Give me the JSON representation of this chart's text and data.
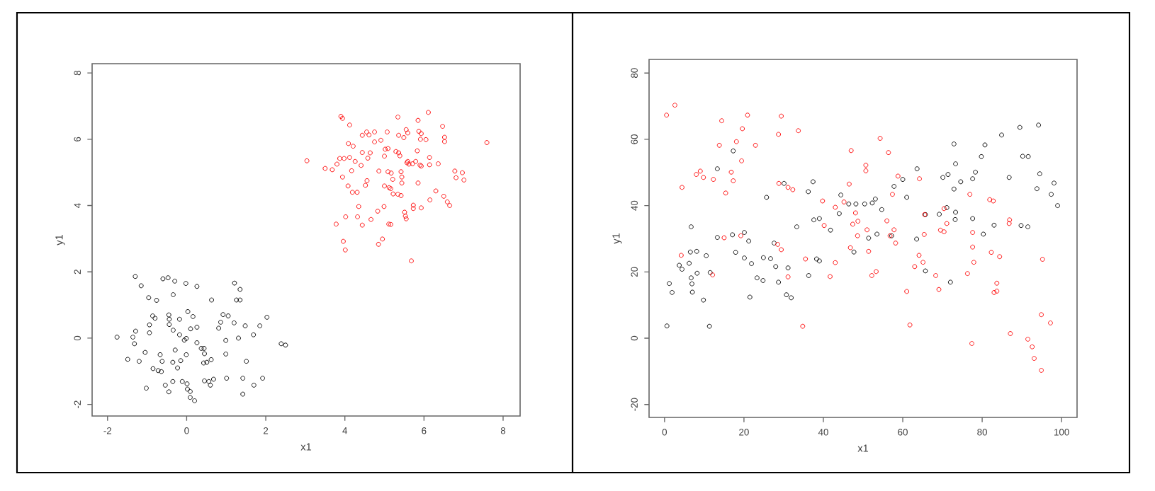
{
  "chart_data": [
    {
      "type": "scatter",
      "xlabel": "x1",
      "ylabel": "y1",
      "marker": "circle",
      "xlim": [
        -2.39,
        8.43
      ],
      "ylim": [
        -2.35,
        8.28
      ],
      "xticks": [
        -2,
        0,
        2,
        4,
        6,
        8
      ],
      "yticks": [
        -2,
        0,
        2,
        4,
        6,
        8
      ],
      "series": [
        {
          "color": "#000000",
          "x": [
            -1.3,
            -1.15,
            -0.6,
            -0.47,
            -0.3,
            -0.02,
            0.26,
            1.21,
            1.35,
            -0.96,
            -0.76,
            -0.34,
            0.63,
            1.26,
            1.35,
            -0.86,
            -0.8,
            -0.94,
            -0.45,
            -0.44,
            -0.18,
            0.03,
            0.16,
            0.92,
            1.05,
            0.86,
            1.2,
            2.03,
            -1.29,
            -1.36,
            -1.76,
            -1.32,
            -0.94,
            -0.44,
            -0.34,
            -0.18,
            -0.06,
            -0.01,
            0.1,
            0.26,
            0.81,
            0.99,
            1.31,
            1.48,
            1.69,
            1.85,
            2.39,
            2.5,
            -1.49,
            -1.2,
            -1.05,
            -0.67,
            -0.62,
            -0.29,
            -0.35,
            -0.23,
            -0.15,
            -0.01,
            0.26,
            0.37,
            0.44,
            0.45,
            0.43,
            0.51,
            0.62,
            0.99,
            1.51,
            -0.85,
            -0.72,
            -0.64,
            -1.02,
            -0.54,
            -0.35,
            -0.45,
            -0.11,
            0.01,
            0.02,
            0.09,
            0.09,
            0.2,
            0.45,
            0.56,
            0.6,
            0.68,
            1.01,
            1.42,
            1.42,
            1.7,
            1.92
          ],
          "values": [
            1.86,
            1.58,
            1.79,
            1.82,
            1.72,
            1.65,
            1.56,
            1.66,
            1.47,
            1.22,
            1.14,
            1.31,
            1.15,
            1.15,
            1.15,
            0.67,
            0.6,
            0.4,
            0.7,
            0.57,
            0.57,
            0.8,
            0.65,
            0.71,
            0.67,
            0.48,
            0.46,
            0.63,
            0.21,
            0.03,
            0.03,
            -0.17,
            0.16,
            0.41,
            0.24,
            0.1,
            -0.06,
            -0.01,
            0.28,
            0.33,
            0.3,
            -0.07,
            0.0,
            0.37,
            0.1,
            0.37,
            -0.17,
            -0.21,
            -0.64,
            -0.7,
            -0.43,
            -0.5,
            -0.7,
            -0.36,
            -0.73,
            -0.9,
            -0.68,
            -0.5,
            -0.14,
            -0.31,
            -0.31,
            -0.47,
            -0.75,
            -0.73,
            -0.65,
            -0.48,
            -0.7,
            -0.92,
            -0.98,
            -1.01,
            -1.51,
            -1.42,
            -1.31,
            -1.62,
            -1.31,
            -1.38,
            -1.54,
            -1.61,
            -1.79,
            -1.89,
            -1.29,
            -1.31,
            -1.42,
            -1.24,
            -1.21,
            -1.21,
            -1.69,
            -1.42,
            -1.21
          ]
        },
        {
          "color": "#ff0000",
          "x": [
            3.9,
            3.94,
            4.12,
            4.61,
            4.44,
            4.55,
            4.75,
            5.34,
            5.85,
            6.11,
            6.47,
            5.07,
            5.36,
            5.55,
            5.59,
            5.87,
            5.93,
            6.52,
            6.52,
            6.05,
            4.09,
            4.21,
            4.75,
            4.91,
            5.91,
            5.09,
            5.49,
            5.83,
            3.04,
            3.5,
            3.68,
            3.8,
            3.87,
            3.98,
            4.17,
            4.12,
            4.26,
            4.41,
            4.58,
            4.44,
            4.64,
            5.0,
            5.02,
            5.29,
            5.36,
            5.39,
            5.59,
            5.79,
            5.71,
            6.14,
            5.93,
            6.14,
            6.36,
            5.17,
            5.42,
            5.57,
            5.62,
            5.9,
            4.86,
            3.94,
            4.08,
            4.19,
            4.31,
            4.56,
            4.52,
            5.09,
            5.21,
            5.44,
            5.44,
            5.0,
            5.12,
            5.16,
            5.22,
            5.34,
            5.42,
            5.85,
            6.3,
            6.5,
            6.59,
            6.65,
            6.78,
            6.81,
            6.97,
            7.01,
            5.73,
            5.73,
            5.93,
            6.15,
            4.35,
            4.83,
            4.99,
            4.02,
            4.32,
            4.44,
            3.78,
            4.66,
            5.11,
            5.16,
            5.51,
            5.53,
            5.55,
            3.96,
            4.01,
            4.85,
            4.95,
            5.68,
            7.59
          ],
          "values": [
            6.69,
            6.63,
            6.43,
            6.13,
            6.12,
            6.22,
            6.22,
            6.67,
            6.57,
            6.81,
            6.39,
            6.22,
            6.12,
            6.29,
            6.19,
            6.24,
            6.17,
            6.06,
            5.93,
            5.99,
            5.87,
            5.79,
            5.92,
            5.97,
            6.0,
            5.72,
            6.05,
            5.65,
            5.35,
            5.12,
            5.08,
            5.25,
            5.42,
            5.42,
            5.05,
            5.45,
            5.33,
            5.21,
            5.43,
            5.6,
            5.59,
            5.49,
            5.7,
            5.63,
            5.59,
            5.5,
            5.33,
            5.33,
            5.26,
            5.45,
            5.19,
            5.23,
            5.26,
            4.98,
            5.02,
            5.29,
            5.25,
            5.22,
            5.04,
            4.86,
            4.59,
            4.4,
            4.4,
            4.75,
            4.61,
            5.02,
            4.79,
            4.86,
            4.68,
            4.59,
            4.54,
            4.51,
            4.35,
            4.34,
            4.3,
            4.68,
            4.44,
            4.28,
            4.11,
            4.0,
            5.04,
            4.84,
            4.99,
            4.77,
            4.01,
            3.91,
            3.93,
            4.17,
            3.97,
            3.83,
            3.97,
            3.66,
            3.66,
            3.41,
            3.44,
            3.58,
            3.44,
            3.43,
            3.8,
            3.68,
            3.6,
            2.92,
            2.66,
            2.83,
            2.99,
            2.33,
            5.9
          ]
        }
      ]
    },
    {
      "type": "scatter",
      "xlabel": "x1",
      "ylabel": "y1",
      "marker": "circle",
      "xlim": [
        -3.9,
        103.9
      ],
      "ylim": [
        -23.9,
        84.1
      ],
      "xticks": [
        0,
        20,
        40,
        60,
        80,
        100
      ],
      "yticks": [
        -20,
        0,
        20,
        40,
        60,
        80
      ],
      "series": [
        {
          "color": "#000000",
          "x": [
            0.6,
            1.2,
            1.9,
            3.7,
            4.4,
            6.2,
            6.7,
            6.5,
            6.7,
            6.9,
            7.0,
            8.1,
            8.2,
            10.5,
            9.8,
            11.5,
            11.3,
            13.3,
            13.3,
            17.1,
            17.3,
            17.9,
            20.1,
            20.1,
            21.2,
            21.9,
            21.5,
            23.3,
            24.8,
            24.9,
            25.7,
            26.7,
            27.6,
            28.0,
            28.7,
            30.1,
            30.7,
            31.1,
            31.9,
            33.3,
            36.2,
            36.3,
            37.4,
            37.6,
            38.3,
            39.0,
            39.0,
            41.8,
            44.0,
            44.4,
            46.4,
            47.7,
            48.2,
            51.4,
            50.4,
            52.3,
            53.1,
            53.5,
            54.7,
            57.2,
            57.8,
            60.0,
            61.0,
            63.6,
            63.5,
            65.7,
            65.7,
            69.2,
            70.1,
            71.4,
            71.1,
            72.0,
            72.9,
            73.3,
            72.9,
            73.3,
            73.2,
            74.6,
            77.6,
            77.6,
            78.3,
            79.8,
            80.7,
            80.3,
            83.0,
            84.9,
            86.8,
            89.5,
            89.8,
            91.5,
            90.2,
            91.6,
            93.8,
            94.2,
            94.5,
            97.4,
            98.1,
            99.0
          ],
          "values": [
            3.7,
            16.5,
            13.8,
            22.0,
            20.8,
            22.6,
            33.6,
            26.0,
            18.2,
            16.4,
            13.9,
            26.2,
            19.6,
            24.9,
            11.5,
            19.8,
            3.6,
            51.1,
            30.4,
            31.2,
            56.5,
            25.9,
            31.9,
            24.2,
            29.3,
            22.5,
            12.4,
            18.2,
            17.4,
            24.3,
            42.5,
            24.0,
            28.7,
            21.6,
            16.9,
            46.7,
            13.1,
            21.2,
            12.2,
            33.6,
            44.2,
            18.9,
            47.2,
            35.7,
            23.9,
            36.1,
            23.3,
            32.6,
            37.6,
            43.2,
            40.5,
            26.0,
            40.5,
            30.2,
            40.5,
            40.8,
            42.0,
            31.4,
            38.8,
            30.9,
            45.8,
            47.9,
            42.5,
            51.1,
            29.9,
            37.3,
            20.3,
            37.4,
            48.5,
            49.4,
            39.4,
            16.9,
            45.0,
            52.6,
            58.6,
            38.0,
            35.8,
            47.2,
            36.1,
            48.1,
            50.1,
            54.8,
            58.3,
            31.4,
            34.1,
            61.3,
            48.5,
            63.6,
            34.0,
            33.6,
            54.9,
            54.8,
            45.1,
            64.3,
            49.6,
            43.4,
            46.8,
            40.0
          ]
        },
        {
          "color": "#ff0000",
          "x": [
            0.5,
            2.6,
            4.4,
            4.2,
            8.0,
            9.0,
            9.8,
            12.3,
            12.1,
            14.4,
            13.8,
            15.4,
            15.0,
            16.8,
            17.3,
            18.1,
            19.4,
            19.6,
            20.9,
            19.2,
            22.9,
            28.5,
            28.8,
            29.4,
            28.7,
            29.4,
            31.1,
            32.3,
            33.7,
            31.1,
            34.8,
            35.5,
            39.8,
            40.2,
            41.7,
            43.0,
            43.0,
            45.2,
            46.5,
            47.0,
            46.8,
            47.4,
            48.1,
            48.6,
            48.7,
            50.7,
            50.7,
            51.0,
            51.4,
            52.2,
            53.3,
            54.3,
            56.4,
            56.0,
            56.8,
            57.8,
            58.2,
            57.4,
            58.8,
            61.0,
            61.8,
            63.0,
            64.1,
            65.1,
            64.2,
            65.5,
            65.4,
            68.3,
            69.1,
            69.5,
            70.4,
            70.4,
            71.1,
            76.3,
            76.9,
            77.4,
            77.6,
            77.6,
            77.9,
            81.9,
            82.8,
            82.3,
            83.0,
            83.7,
            83.7,
            84.4,
            86.9,
            86.8,
            87.1,
            91.5,
            92.6,
            93.1,
            94.9,
            94.9,
            95.2,
            97.2
          ],
          "values": [
            67.3,
            70.3,
            45.5,
            25.0,
            49.4,
            50.4,
            48.5,
            47.9,
            19.1,
            65.6,
            58.2,
            43.8,
            30.3,
            50.1,
            47.5,
            59.3,
            53.5,
            63.2,
            67.3,
            30.9,
            58.2,
            28.3,
            46.7,
            26.7,
            61.5,
            67.0,
            45.5,
            44.8,
            62.6,
            18.5,
            3.6,
            23.9,
            41.4,
            34.0,
            18.6,
            22.8,
            39.5,
            41.1,
            46.5,
            56.6,
            27.3,
            34.4,
            37.8,
            30.9,
            35.3,
            50.5,
            52.2,
            32.7,
            26.2,
            18.9,
            20.1,
            60.3,
            56.0,
            35.4,
            30.9,
            32.7,
            28.7,
            43.4,
            48.9,
            14.1,
            4.0,
            21.6,
            25.0,
            22.9,
            48.1,
            37.3,
            31.3,
            18.9,
            14.7,
            32.6,
            32.1,
            39.1,
            34.6,
            19.5,
            43.4,
            -1.6,
            27.5,
            31.9,
            22.9,
            41.8,
            41.4,
            25.9,
            13.8,
            14.2,
            16.6,
            24.6,
            35.7,
            34.6,
            1.4,
            -0.3,
            -2.6,
            -6.1,
            -9.7,
            7.1,
            23.8,
            4.6
          ]
        }
      ]
    }
  ]
}
